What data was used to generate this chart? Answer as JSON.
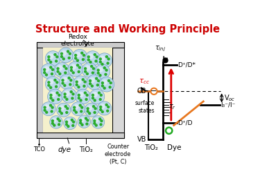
{
  "title": "Structure and Working Principle",
  "title_color": "#cc0000",
  "title_fontsize": 10.5,
  "bg_color": "#ffffff",
  "left_panel": {
    "tco_label": "TCO",
    "dye_label": "dye",
    "tio2_label": "TiO₂",
    "counter_label": "Counter\nelectrode\n(Pt, C)",
    "redox_label": "Redox\nelectrolyte",
    "sphere_color_outer": "#b8d8f0",
    "dot_color": "#22aa22",
    "electrolyte_bg": "#f5f0cc"
  },
  "right_panel": {
    "cb_label": "CB",
    "vb_label": "VB",
    "tio2_label": "TiO₂",
    "dye_label": "Dye",
    "tau_inj": "τinj",
    "tau_cc": "τcc",
    "tau_r": "τr",
    "surface_states": "surface\nstates",
    "dstar_label": "D⁺/D*",
    "dp_label": "D⁺/D",
    "i3_label": "I₃⁻/I⁻",
    "voc_label": "V₀⁣",
    "orange_color": "#e87820",
    "red_color": "#dd0000",
    "green_color": "#22aa22"
  }
}
